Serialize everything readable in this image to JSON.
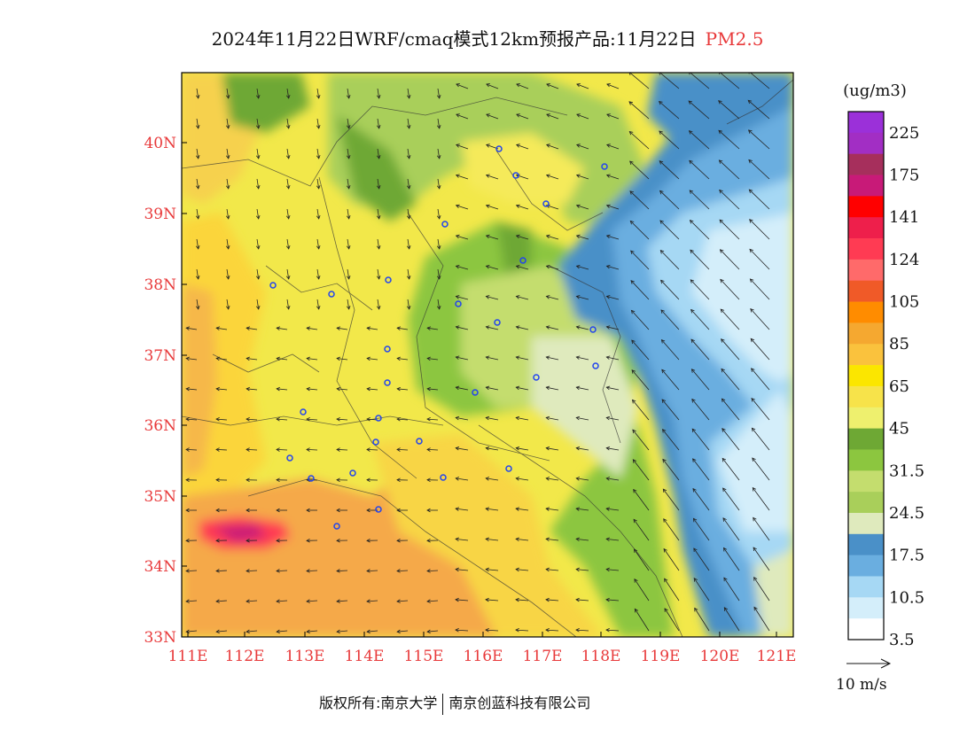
{
  "title": {
    "main": "2024年11月22日WRF/cmaq模式12km预报产品:11月22日",
    "variable": "PM2.5"
  },
  "map": {
    "lat_labels": [
      "40N",
      "39N",
      "38N",
      "37N",
      "36N",
      "35N",
      "34N",
      "33N"
    ],
    "lon_labels": [
      "111E",
      "112E",
      "113E",
      "114E",
      "115E",
      "116E",
      "117E",
      "118E",
      "119E",
      "120E",
      "121E"
    ],
    "label_color": "#e8393a"
  },
  "legend": {
    "unit": "(ug/m3)",
    "labels": [
      "225",
      "175",
      "141",
      "124",
      "105",
      "85",
      "65",
      "45",
      "31.5",
      "24.5",
      "17.5",
      "10.5",
      "3.5"
    ],
    "colors": [
      "#9b30d9",
      "#a22ec4",
      "#a62f5c",
      "#c81a78",
      "#ff0000",
      "#ee1f4b",
      "#ff3b53",
      "#ff6a6a",
      "#f05a28",
      "#ff8c00",
      "#f5a830",
      "#fac23d",
      "#fbe600",
      "#f7e34a",
      "#eef06e",
      "#6ea834",
      "#8cc63f",
      "#c4dd6e",
      "#a9cf5a",
      "#dfeabd",
      "#4a90c8",
      "#6aaee0",
      "#a6d8f4",
      "#d4eefa",
      "#ffffff"
    ],
    "wind_ref_label": "10 m/s"
  },
  "copyright": {
    "owner": "版权所有:南京大学",
    "company": "南京创蓝科技有限公司"
  }
}
